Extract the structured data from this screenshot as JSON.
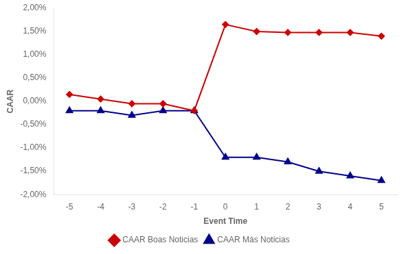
{
  "chart_data": {
    "type": "line",
    "x": [
      -5,
      -4,
      -3,
      -2,
      -1,
      0,
      1,
      2,
      3,
      4,
      5
    ],
    "series": [
      {
        "name": "CAAR Boas Noticias",
        "color": "#cc0000",
        "marker": "diamond",
        "values": [
          0.0015,
          0.0005,
          -0.0005,
          -0.0005,
          -0.002,
          0.0165,
          0.015,
          0.0148,
          0.0148,
          0.0148,
          0.014
        ]
      },
      {
        "name": "CAAR Más Noticias",
        "color": "#00008B",
        "marker": "triangle",
        "values": [
          -0.002,
          -0.002,
          -0.003,
          -0.002,
          -0.002,
          -0.012,
          -0.012,
          -0.013,
          -0.015,
          -0.016,
          -0.017
        ]
      }
    ],
    "xlabel": "Event Time",
    "ylabel": "CAAR",
    "xlim": [
      -5.5,
      5.5
    ],
    "xticks": [
      -5,
      -4,
      -3,
      -2,
      -1,
      0,
      1,
      2,
      3,
      4,
      5
    ],
    "ylim": [
      -0.02,
      0.02
    ],
    "yticks": [
      {
        "value": -0.02,
        "label": "-2,00%"
      },
      {
        "value": -0.015,
        "label": "-1,50%"
      },
      {
        "value": -0.01,
        "label": "-1,00%"
      },
      {
        "value": -0.005,
        "label": "-0,50%"
      },
      {
        "value": 0,
        "label": "0,00%"
      },
      {
        "value": 0.005,
        "label": "0,50%"
      },
      {
        "value": 0.01,
        "label": "1,00%"
      },
      {
        "value": 0.015,
        "label": "1,50%"
      },
      {
        "value": 0.02,
        "label": "2,00%"
      }
    ],
    "grid": false,
    "legend": "bottom"
  }
}
